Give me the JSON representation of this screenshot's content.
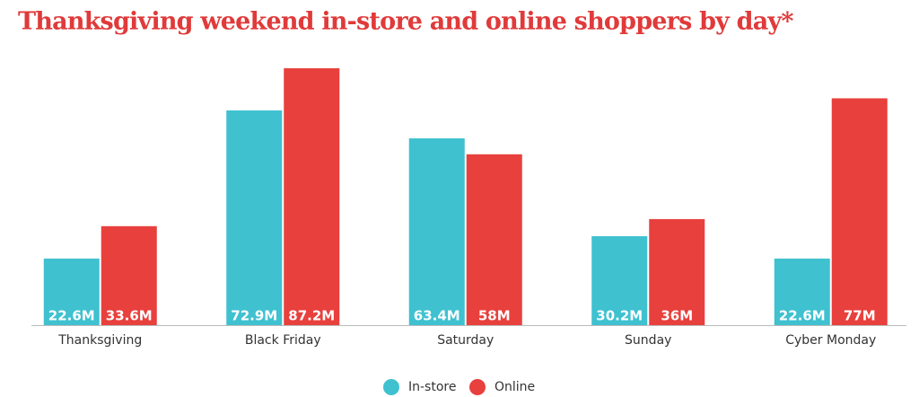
{
  "chart_data": {
    "type": "bar",
    "title": "Thanksgiving weekend in-store and online shoppers by day*",
    "categories": [
      "Thanksgiving",
      "Black Friday",
      "Saturday",
      "Sunday",
      "Cyber Monday"
    ],
    "series": [
      {
        "name": "In-store",
        "color": "#3fc1d0",
        "values": [
          22.6,
          72.9,
          63.4,
          30.2,
          22.6
        ],
        "value_labels": [
          "22.6M",
          "72.9M",
          "63.4M",
          "30.2M",
          "22.6M"
        ]
      },
      {
        "name": "Online",
        "color": "#e8403d",
        "values": [
          33.6,
          87.2,
          58,
          36,
          77
        ],
        "value_labels": [
          "33.6M",
          "87.2M",
          "58M",
          "36M",
          "77M"
        ]
      }
    ],
    "legend": "bottom"
  }
}
